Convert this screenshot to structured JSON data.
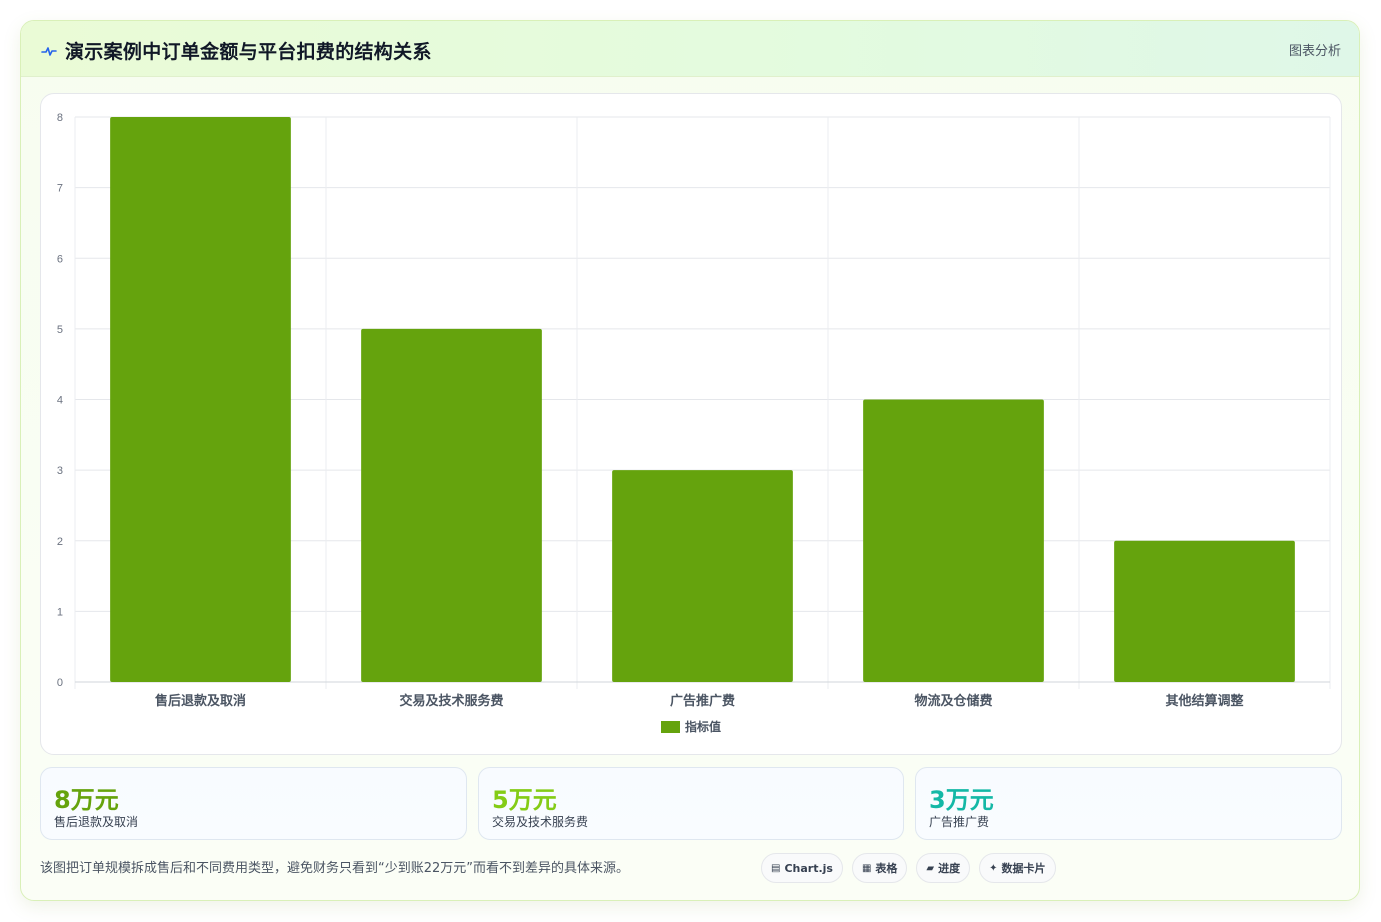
{
  "header": {
    "title": "演示案例中订单金额与平台扣费的结构关系",
    "tag": "图表分析",
    "icon": "pulse-icon"
  },
  "chart_data": {
    "type": "bar",
    "categories": [
      "售后退款及取消",
      "交易及技术服务费",
      "广告推广费",
      "物流及仓储费",
      "其他结算调整"
    ],
    "series": [
      {
        "name": "指标值",
        "values": [
          8,
          5,
          3,
          4,
          2
        ],
        "color": "#65a30d"
      }
    ],
    "ylim": [
      0,
      8
    ],
    "yticks": [
      "0",
      "1",
      "2",
      "3",
      "4",
      "5",
      "6",
      "7",
      "8"
    ],
    "grid": true,
    "legend": "bottom"
  },
  "stats": [
    {
      "value": "8万元",
      "label": "售后退款及取消",
      "color": "#65a30d"
    },
    {
      "value": "5万元",
      "label": "交易及技术服务费",
      "color": "#84cc16"
    },
    {
      "value": "3万元",
      "label": "广告推广费",
      "color": "#14b8a6"
    }
  ],
  "footer": {
    "note": "该图把订单规模拆成售后和不同费用类型，避免财务只看到“少到账22万元”而看不到差异的具体来源。",
    "chips": [
      {
        "icon": "▤",
        "icon_name": "chart-icon",
        "label": "Chart.js"
      },
      {
        "icon": "▦",
        "icon_name": "table-icon",
        "label": "表格"
      },
      {
        "icon": "▰",
        "icon_name": "progress-icon",
        "label": "进度"
      },
      {
        "icon": "✦",
        "icon_name": "card-icon",
        "label": "数据卡片"
      }
    ]
  }
}
